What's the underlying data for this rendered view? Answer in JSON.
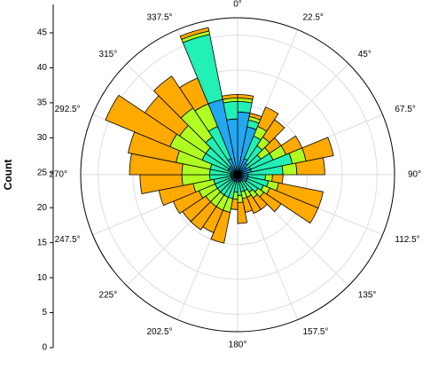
{
  "chart_data": {
    "type": "polar_stacked_bar",
    "ylabel": "Count",
    "ylim": [
      0,
      45
    ],
    "yticks": [
      0,
      5,
      10,
      15,
      20,
      25,
      30,
      35,
      40,
      45
    ],
    "xticks": [
      {
        "value": 0,
        "label": "0°"
      },
      {
        "value": 22.5,
        "label": "22.5°"
      },
      {
        "value": 45,
        "label": "45°"
      },
      {
        "value": 67.5,
        "label": "67.5°"
      },
      {
        "value": 90,
        "label": "90°"
      },
      {
        "value": 112.5,
        "label": "112.5°"
      },
      {
        "value": 135,
        "label": "135°"
      },
      {
        "value": 157.5,
        "label": "157.5°"
      },
      {
        "value": 180,
        "label": "180°"
      },
      {
        "value": 202.5,
        "label": "202.5°"
      },
      {
        "value": 225,
        "label": "225°"
      },
      {
        "value": 247.5,
        "label": "247.5°"
      },
      {
        "value": 270,
        "label": "270°"
      },
      {
        "value": 292.5,
        "label": "292.5°"
      },
      {
        "value": 315,
        "label": "315°"
      },
      {
        "value": 337.5,
        "label": "337.5°"
      }
    ],
    "bar_width": 11.25,
    "x": [
      5.625,
      16.875,
      28.125,
      39.375,
      50.625,
      61.875,
      73.125,
      84.375,
      95.625,
      106.875,
      118.125,
      129.375,
      140.625,
      151.875,
      163.125,
      174.375,
      185.625,
      196.875,
      208.125,
      219.375,
      230.625,
      241.875,
      253.125,
      264.375,
      275.625,
      286.875,
      298.125,
      309.375,
      320.625,
      331.875,
      343.125,
      354.375
    ],
    "series": [
      {
        "color": "#22a8f2",
        "values": [
          18,
          14,
          5,
          4,
          3,
          4,
          4,
          3,
          3,
          3,
          3,
          3,
          2,
          2,
          2,
          2,
          2,
          2,
          2,
          2,
          2,
          2,
          2,
          2,
          2,
          2,
          3,
          3,
          3,
          5,
          22,
          16
        ]
      },
      {
        "color": "#22f0b4",
        "values": [
          3,
          2,
          7,
          6,
          5,
          7,
          12,
          10,
          5,
          6,
          5,
          4,
          4,
          3,
          3,
          4,
          3,
          5,
          5,
          5,
          5,
          5,
          5,
          6,
          6,
          6,
          8,
          8,
          10,
          10,
          19,
          5
        ]
      },
      {
        "color": "#b0ff22",
        "values": [
          1,
          1,
          3,
          3,
          3,
          4,
          4,
          4,
          2,
          3,
          2,
          2,
          2,
          2,
          2,
          2,
          2,
          4,
          4,
          4,
          4,
          5,
          6,
          8,
          8,
          10,
          10,
          9,
          10,
          7,
          1,
          1
        ]
      },
      {
        "color": "#ffaa00",
        "values": [
          1,
          1,
          6,
          6,
          4,
          5,
          8,
          8,
          3,
          13,
          15,
          6,
          4,
          5,
          4,
          6,
          3,
          9,
          7,
          8,
          8,
          8,
          10,
          12,
          15,
          14,
          20,
          12,
          11,
          8,
          1,
          1
        ]
      }
    ]
  }
}
